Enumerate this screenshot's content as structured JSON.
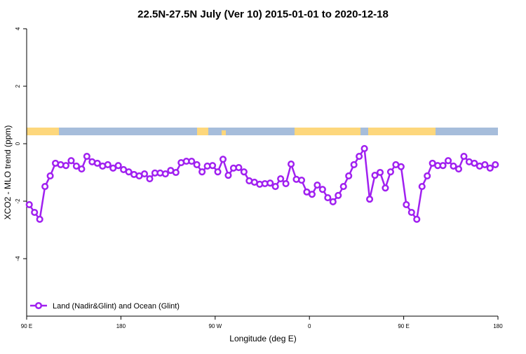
{
  "chart_data": {
    "type": "line",
    "title": "22.5N-27.5N July (Ver 10)   2015-01-01 to 2020-12-18",
    "x_label": "Longitude (deg E)",
    "y_label": "XCO2 - MLO trend (ppm)",
    "xlim": [
      90,
      540
    ],
    "xticks": [
      {
        "value": 90,
        "label": "90 E"
      },
      180,
      {
        "value": 270,
        "label": "90 W"
      },
      {
        "value": 360,
        "label": "0"
      },
      {
        "value": 450,
        "label": "90 E"
      },
      {
        "value": 540,
        "label": "180"
      }
    ],
    "ylim": [
      -6,
      4
    ],
    "yticks": [
      -4,
      -2,
      0,
      2,
      4
    ],
    "legend": "bottom-left",
    "x": [
      92.5,
      97.5,
      102.5,
      107.5,
      112.5,
      117.5,
      122.5,
      127.5,
      132.5,
      137.5,
      142.5,
      147.5,
      152.5,
      157.5,
      162.5,
      167.5,
      172.5,
      177.5,
      182.5,
      187.5,
      192.5,
      197.5,
      202.5,
      207.5,
      212.5,
      217.5,
      222.5,
      227.5,
      232.5,
      237.5,
      242.5,
      247.5,
      252.5,
      257.5,
      262.5,
      267.5,
      272.5,
      277.5,
      282.5,
      287.5,
      292.5,
      297.5,
      302.5,
      307.5,
      312.5,
      317.5,
      322.5,
      327.5,
      332.5,
      337.5,
      342.5,
      347.5,
      352.5,
      357.5,
      362.5,
      367.5,
      372.5,
      377.5,
      382.5,
      387.5,
      392.5,
      397.5,
      402.5,
      407.5,
      412.5,
      417.5,
      422.5,
      427.5,
      432.5,
      437.5,
      442.5,
      447.5,
      452.5,
      457.5,
      462.5,
      467.5,
      472.5,
      477.5,
      482.5,
      487.5,
      492.5,
      497.5,
      502.5,
      507.5,
      512.5,
      517.5,
      522.5,
      527.5,
      532.5,
      537.5
    ],
    "series": [
      {
        "name": "Land (Nadir&Glint) and Ocean (Glint)",
        "color": "#a020f0",
        "values": [
          -2.12,
          -2.39,
          -2.63,
          -1.49,
          -1.12,
          -0.68,
          -0.73,
          -0.76,
          -0.59,
          -0.78,
          -0.88,
          -0.44,
          -0.63,
          -0.68,
          -0.78,
          -0.73,
          -0.85,
          -0.76,
          -0.9,
          -0.98,
          -1.07,
          -1.12,
          -1.05,
          -1.22,
          -1.02,
          -1.02,
          -1.05,
          -0.93,
          -1.0,
          -0.66,
          -0.61,
          -0.61,
          -0.73,
          -0.98,
          -0.78,
          -0.76,
          -0.98,
          -0.54,
          -1.1,
          -0.85,
          -0.83,
          -0.98,
          -1.29,
          -1.34,
          -1.41,
          -1.39,
          -1.37,
          -1.49,
          -1.22,
          -1.39,
          -0.71,
          -1.24,
          -1.27,
          -1.68,
          -1.76,
          -1.44,
          -1.59,
          -1.88,
          -2.02,
          -1.8,
          -1.49,
          -1.12,
          -0.73,
          -0.44,
          -0.17,
          -1.93,
          -1.1,
          -1.0,
          -1.54,
          -0.98,
          -0.73,
          -0.8,
          -2.12,
          -2.39,
          -2.63,
          -1.49,
          -1.12,
          -0.68,
          -0.76,
          -0.76,
          -0.59,
          -0.78,
          -0.88,
          -0.44,
          -0.63,
          -0.68,
          -0.78,
          -0.73,
          -0.85,
          -0.73
        ]
      }
    ]
  }
}
